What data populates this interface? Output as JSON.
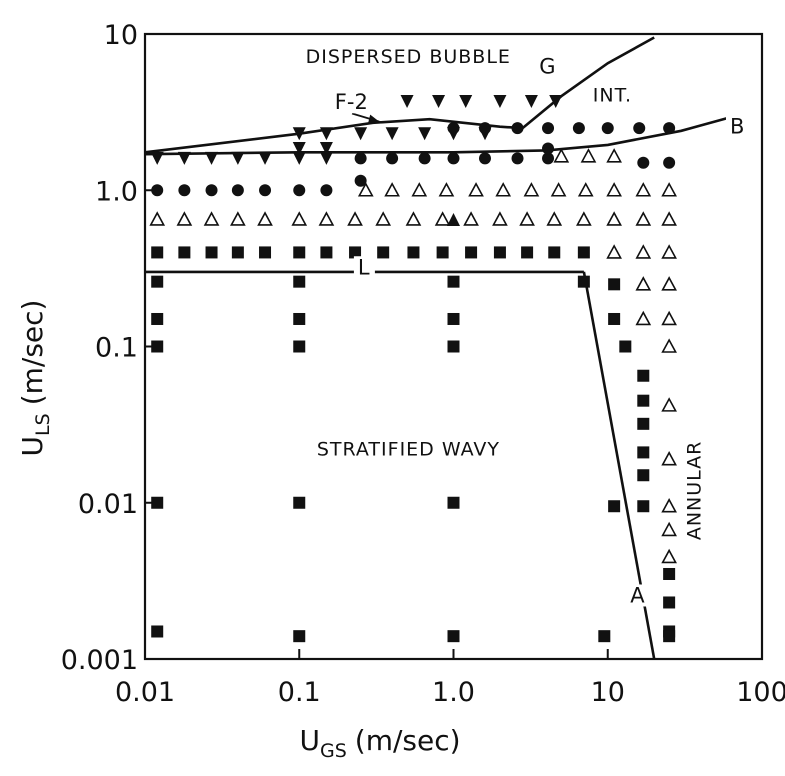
{
  "chart_data": {
    "type": "scatter",
    "xlabel_main": "U",
    "xlabel_sub": "GS",
    "xlabel_unit": "(m/sec)",
    "ylabel_main": "U",
    "ylabel_sub": "LS",
    "ylabel_unit": "(m/sec)",
    "xscale": "log",
    "yscale": "log",
    "xlim": [
      0.01,
      100
    ],
    "ylim": [
      0.001,
      10
    ],
    "xticks": [
      {
        "value": 0.01,
        "label": "0.01"
      },
      {
        "value": 0.1,
        "label": "0.1"
      },
      {
        "value": 1.0,
        "label": "1.0"
      },
      {
        "value": 10,
        "label": "10"
      },
      {
        "value": 100,
        "label": "100"
      }
    ],
    "yticks": [
      {
        "value": 0.001,
        "label": "0.001"
      },
      {
        "value": 0.01,
        "label": "0.01"
      },
      {
        "value": 0.1,
        "label": "0.1"
      },
      {
        "value": 1.0,
        "label": "1.0"
      },
      {
        "value": 10,
        "label": "10"
      }
    ],
    "grid": false,
    "regions": [
      {
        "label": "DISPERSED BUBBLE",
        "x": 0.11,
        "y": 6.5
      },
      {
        "label": "INT.",
        "x": 8.0,
        "y": 3.7
      },
      {
        "label": "STRATIFIED WAVY",
        "x": 0.13,
        "y": 0.02
      },
      {
        "label": "ANNULAR",
        "x": 40,
        "y": 0.012,
        "rotate": true
      }
    ],
    "boundaries": [
      {
        "name": "F-2",
        "x": [
          0.01,
          0.1,
          0.3,
          0.7,
          2.0,
          2.8
        ],
        "y": [
          1.75,
          2.3,
          2.7,
          2.85,
          2.55,
          2.5
        ]
      },
      {
        "name": "G",
        "x": [
          2.6,
          5.0,
          10.0,
          20.0
        ],
        "y": [
          2.35,
          4.0,
          6.5,
          9.5
        ]
      },
      {
        "name": "B",
        "x": [
          0.01,
          0.1,
          1.0,
          4.0,
          10.0,
          30.0,
          60.0
        ],
        "y": [
          1.7,
          1.75,
          1.75,
          1.8,
          1.95,
          2.4,
          2.9
        ]
      },
      {
        "name": "L",
        "x": [
          0.01,
          0.1,
          1.0,
          7.0
        ],
        "y": [
          0.3,
          0.3,
          0.3,
          0.3
        ]
      },
      {
        "name": "A",
        "x": [
          7.0,
          20.0
        ],
        "y": [
          0.3,
          0.001
        ]
      }
    ],
    "curve_labels": [
      {
        "text": "F-2",
        "x": 0.17,
        "y": 3.3
      },
      {
        "text": "G",
        "x": 3.6,
        "y": 5.6
      },
      {
        "text": "B",
        "x": 62,
        "y": 2.3
      },
      {
        "text": "L",
        "x": 0.24,
        "y": 0.29
      },
      {
        "text": "A",
        "x": 14,
        "y": 0.0023
      }
    ],
    "series": [
      {
        "marker": "filled-triangle-down",
        "points": [
          [
            0.5,
            3.7
          ],
          [
            0.8,
            3.7
          ],
          [
            1.2,
            3.7
          ],
          [
            2.0,
            3.7
          ],
          [
            3.2,
            3.7
          ],
          [
            4.6,
            3.7
          ],
          [
            0.1,
            2.3
          ],
          [
            0.15,
            2.3
          ],
          [
            0.25,
            2.3
          ],
          [
            0.4,
            2.3
          ],
          [
            0.65,
            2.3
          ],
          [
            1.0,
            2.3
          ],
          [
            1.6,
            2.3
          ],
          [
            0.1,
            1.85
          ],
          [
            0.15,
            1.85
          ],
          [
            0.012,
            1.6
          ],
          [
            0.018,
            1.6
          ],
          [
            0.027,
            1.6
          ],
          [
            0.04,
            1.6
          ],
          [
            0.06,
            1.6
          ],
          [
            0.1,
            1.6
          ],
          [
            0.15,
            1.6
          ]
        ]
      },
      {
        "marker": "filled-circle",
        "points": [
          [
            1.0,
            2.5
          ],
          [
            1.6,
            2.5
          ],
          [
            2.6,
            2.5
          ],
          [
            4.1,
            2.5
          ],
          [
            6.5,
            2.5
          ],
          [
            10,
            2.5
          ],
          [
            16,
            2.5
          ],
          [
            25,
            2.5
          ],
          [
            0.25,
            1.6
          ],
          [
            0.4,
            1.6
          ],
          [
            0.65,
            1.6
          ],
          [
            1.0,
            1.6
          ],
          [
            1.6,
            1.6
          ],
          [
            2.6,
            1.6
          ],
          [
            4.1,
            1.6
          ],
          [
            4.1,
            1.85
          ],
          [
            17,
            1.5
          ],
          [
            25,
            1.5
          ],
          [
            0.25,
            1.15
          ],
          [
            0.012,
            1.0
          ],
          [
            0.018,
            1.0
          ],
          [
            0.027,
            1.0
          ],
          [
            0.04,
            1.0
          ],
          [
            0.06,
            1.0
          ],
          [
            0.1,
            1.0
          ],
          [
            0.15,
            1.0
          ]
        ]
      },
      {
        "marker": "open-triangle-up",
        "points": [
          [
            5.0,
            1.65
          ],
          [
            7.5,
            1.65
          ],
          [
            11,
            1.65
          ],
          [
            0.27,
            1.0
          ],
          [
            0.4,
            1.0
          ],
          [
            0.6,
            1.0
          ],
          [
            0.9,
            1.0
          ],
          [
            1.4,
            1.0
          ],
          [
            2.1,
            1.0
          ],
          [
            3.2,
            1.0
          ],
          [
            4.8,
            1.0
          ],
          [
            7.2,
            1.0
          ],
          [
            11,
            1.0
          ],
          [
            17,
            1.0
          ],
          [
            25,
            1.0
          ],
          [
            0.012,
            0.65
          ],
          [
            0.018,
            0.65
          ],
          [
            0.027,
            0.65
          ],
          [
            0.04,
            0.65
          ],
          [
            0.06,
            0.65
          ],
          [
            0.1,
            0.65
          ],
          [
            0.15,
            0.65
          ],
          [
            0.23,
            0.65
          ],
          [
            0.35,
            0.65
          ],
          [
            0.55,
            0.65
          ],
          [
            0.85,
            0.65
          ],
          [
            1.3,
            0.65
          ],
          [
            2.0,
            0.65
          ],
          [
            3.0,
            0.65
          ],
          [
            4.5,
            0.65
          ],
          [
            7.0,
            0.65
          ],
          [
            11,
            0.65
          ],
          [
            17,
            0.65
          ],
          [
            25,
            0.65
          ],
          [
            11,
            0.4
          ],
          [
            17,
            0.4
          ],
          [
            25,
            0.4
          ],
          [
            17,
            0.25
          ],
          [
            25,
            0.25
          ],
          [
            17,
            0.15
          ],
          [
            25,
            0.15
          ],
          [
            25,
            0.1
          ],
          [
            25,
            0.042
          ],
          [
            25,
            0.019
          ],
          [
            25,
            0.0095
          ],
          [
            25,
            0.0067
          ],
          [
            25,
            0.0045
          ]
        ]
      },
      {
        "marker": "filled-triangle-up",
        "points": [
          [
            1.0,
            0.65
          ]
        ]
      },
      {
        "marker": "filled-square",
        "points": [
          [
            0.012,
            0.4
          ],
          [
            0.018,
            0.4
          ],
          [
            0.027,
            0.4
          ],
          [
            0.04,
            0.4
          ],
          [
            0.06,
            0.4
          ],
          [
            0.1,
            0.4
          ],
          [
            0.15,
            0.4
          ],
          [
            0.23,
            0.4
          ],
          [
            0.35,
            0.4
          ],
          [
            0.55,
            0.4
          ],
          [
            0.85,
            0.4
          ],
          [
            1.3,
            0.4
          ],
          [
            2.0,
            0.4
          ],
          [
            3.0,
            0.4
          ],
          [
            4.5,
            0.4
          ],
          [
            7.0,
            0.4
          ],
          [
            0.012,
            0.26
          ],
          [
            0.1,
            0.26
          ],
          [
            1.0,
            0.26
          ],
          [
            7.0,
            0.26
          ],
          [
            11,
            0.25
          ],
          [
            0.012,
            0.15
          ],
          [
            0.1,
            0.15
          ],
          [
            1.0,
            0.15
          ],
          [
            11,
            0.15
          ],
          [
            0.012,
            0.1
          ],
          [
            0.1,
            0.1
          ],
          [
            1.0,
            0.1
          ],
          [
            13,
            0.1
          ],
          [
            17,
            0.065
          ],
          [
            17,
            0.045
          ],
          [
            17,
            0.032
          ],
          [
            17,
            0.021
          ],
          [
            17,
            0.015
          ],
          [
            0.012,
            0.01
          ],
          [
            0.1,
            0.01
          ],
          [
            1.0,
            0.01
          ],
          [
            11,
            0.0095
          ],
          [
            17,
            0.0095
          ],
          [
            25,
            0.0035
          ],
          [
            25,
            0.0023
          ],
          [
            25,
            0.0015
          ],
          [
            0.012,
            0.0015
          ],
          [
            0.1,
            0.0014
          ],
          [
            1.0,
            0.0014
          ],
          [
            9.5,
            0.0014
          ],
          [
            25,
            0.0014
          ]
        ]
      }
    ]
  }
}
